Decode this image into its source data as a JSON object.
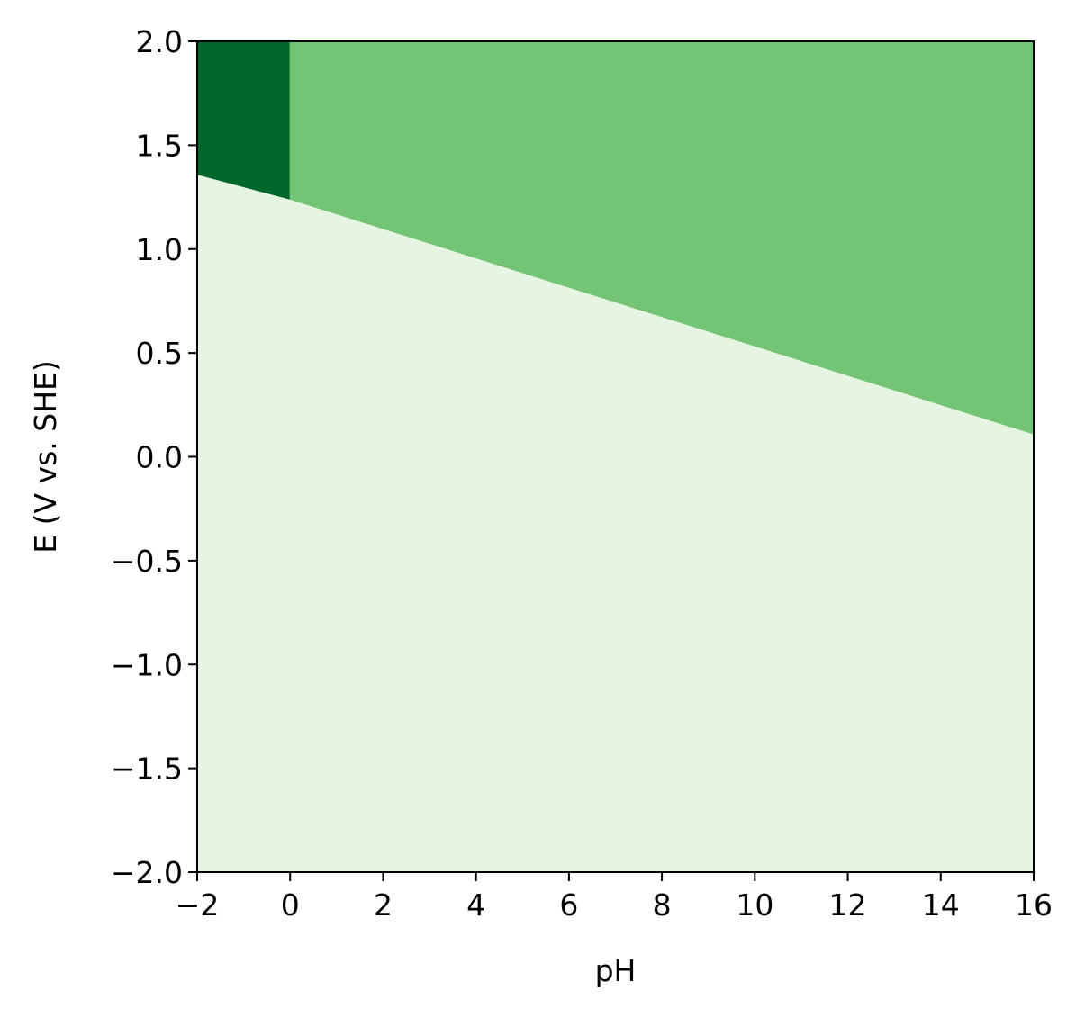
{
  "chart_data": {
    "type": "heatmap",
    "title": "",
    "xlabel": "pH",
    "ylabel": "E (V vs. SHE)",
    "xlim": [
      -2,
      16
    ],
    "ylim": [
      -2.0,
      2.0
    ],
    "xticks": [
      -2,
      0,
      2,
      4,
      6,
      8,
      10,
      12,
      14,
      16
    ],
    "xtick_labels": [
      "−2",
      "0",
      "2",
      "4",
      "6",
      "8",
      "10",
      "12",
      "14",
      "16"
    ],
    "yticks": [
      -2.0,
      -1.5,
      -1.0,
      -0.5,
      0.0,
      0.5,
      1.0,
      1.5,
      2.0
    ],
    "ytick_labels": [
      "−2.0",
      "−1.5",
      "−1.0",
      "−0.5",
      "0.0",
      "0.5",
      "1.0",
      "1.5",
      "2.0"
    ],
    "grid": false,
    "colormap": "Greens",
    "regions": [
      {
        "id": "region-lower",
        "color": "#e6f5e1",
        "polygon": [
          [
            -2,
            -2.0
          ],
          [
            16,
            -2.0
          ],
          [
            16,
            0.11
          ],
          [
            0,
            1.24
          ],
          [
            -2,
            1.36
          ]
        ]
      },
      {
        "id": "region-upper-left",
        "color": "#00672a",
        "polygon": [
          [
            -2,
            1.36
          ],
          [
            0,
            1.24
          ],
          [
            0,
            2.0
          ],
          [
            -2,
            2.0
          ]
        ]
      },
      {
        "id": "region-upper-right",
        "color": "#74c476",
        "polygon": [
          [
            0,
            1.24
          ],
          [
            16,
            0.11
          ],
          [
            16,
            2.0
          ],
          [
            0,
            2.0
          ]
        ]
      }
    ],
    "boundaries": [
      {
        "name": "boundary-low-left",
        "points": [
          [
            -2,
            1.36
          ],
          [
            0,
            1.24
          ]
        ]
      },
      {
        "name": "boundary-low-right",
        "points": [
          [
            0,
            1.24
          ],
          [
            16,
            0.11
          ]
        ]
      },
      {
        "name": "boundary-vertical-ph0",
        "points": [
          [
            0,
            1.24
          ],
          [
            0,
            2.0
          ]
        ]
      }
    ]
  }
}
